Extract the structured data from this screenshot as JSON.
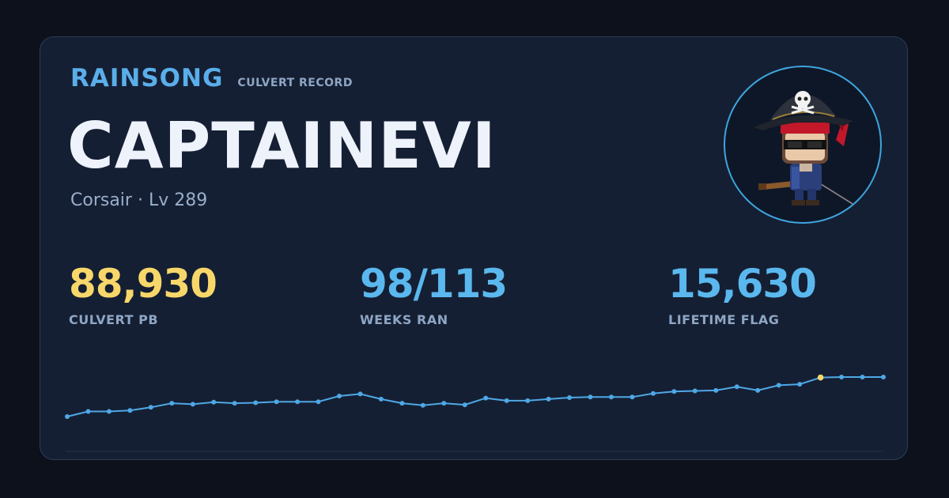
{
  "card": {
    "brand": "RAINSONG",
    "subtitle": "CULVERT RECORD",
    "player_name": "CAPTAINEVI",
    "player_info": "Corsair · Lv 289",
    "colors": {
      "background": "#0c111b",
      "card": "#151f33",
      "accent_blue": "#5ab8ee",
      "accent_gold": "#f8d76a",
      "line": "#4ea8e6"
    },
    "stats": [
      {
        "value": "88,930",
        "label": "CULVERT PB",
        "color": "#f8d76a"
      },
      {
        "value": "98/113",
        "label": "WEEKS RAN",
        "color": "#5ab8ee"
      },
      {
        "value": "15,630",
        "label": "LIFETIME FLAG",
        "color": "#5ab8ee"
      }
    ],
    "avatar_icon": "pirate-character-avatar"
  },
  "chart_data": {
    "type": "line",
    "title": "",
    "xlabel": "",
    "ylabel": "",
    "highlight_index": 36,
    "series": [
      {
        "values": [
          64,
          65,
          65,
          65.2,
          65.8,
          66.6,
          66.4,
          66.8,
          66.6,
          66.7,
          66.9,
          66.9,
          66.9,
          68,
          68.4,
          67.4,
          66.6,
          66.2,
          66.6,
          66.3,
          67.6,
          67.1,
          67.1,
          67.4,
          67.7,
          67.8,
          67.8,
          67.8,
          68.5,
          68.9,
          69,
          69.1,
          69.8,
          69.1,
          70.1,
          70.3,
          71.6,
          71.7,
          71.7,
          71.7
        ]
      }
    ]
  }
}
